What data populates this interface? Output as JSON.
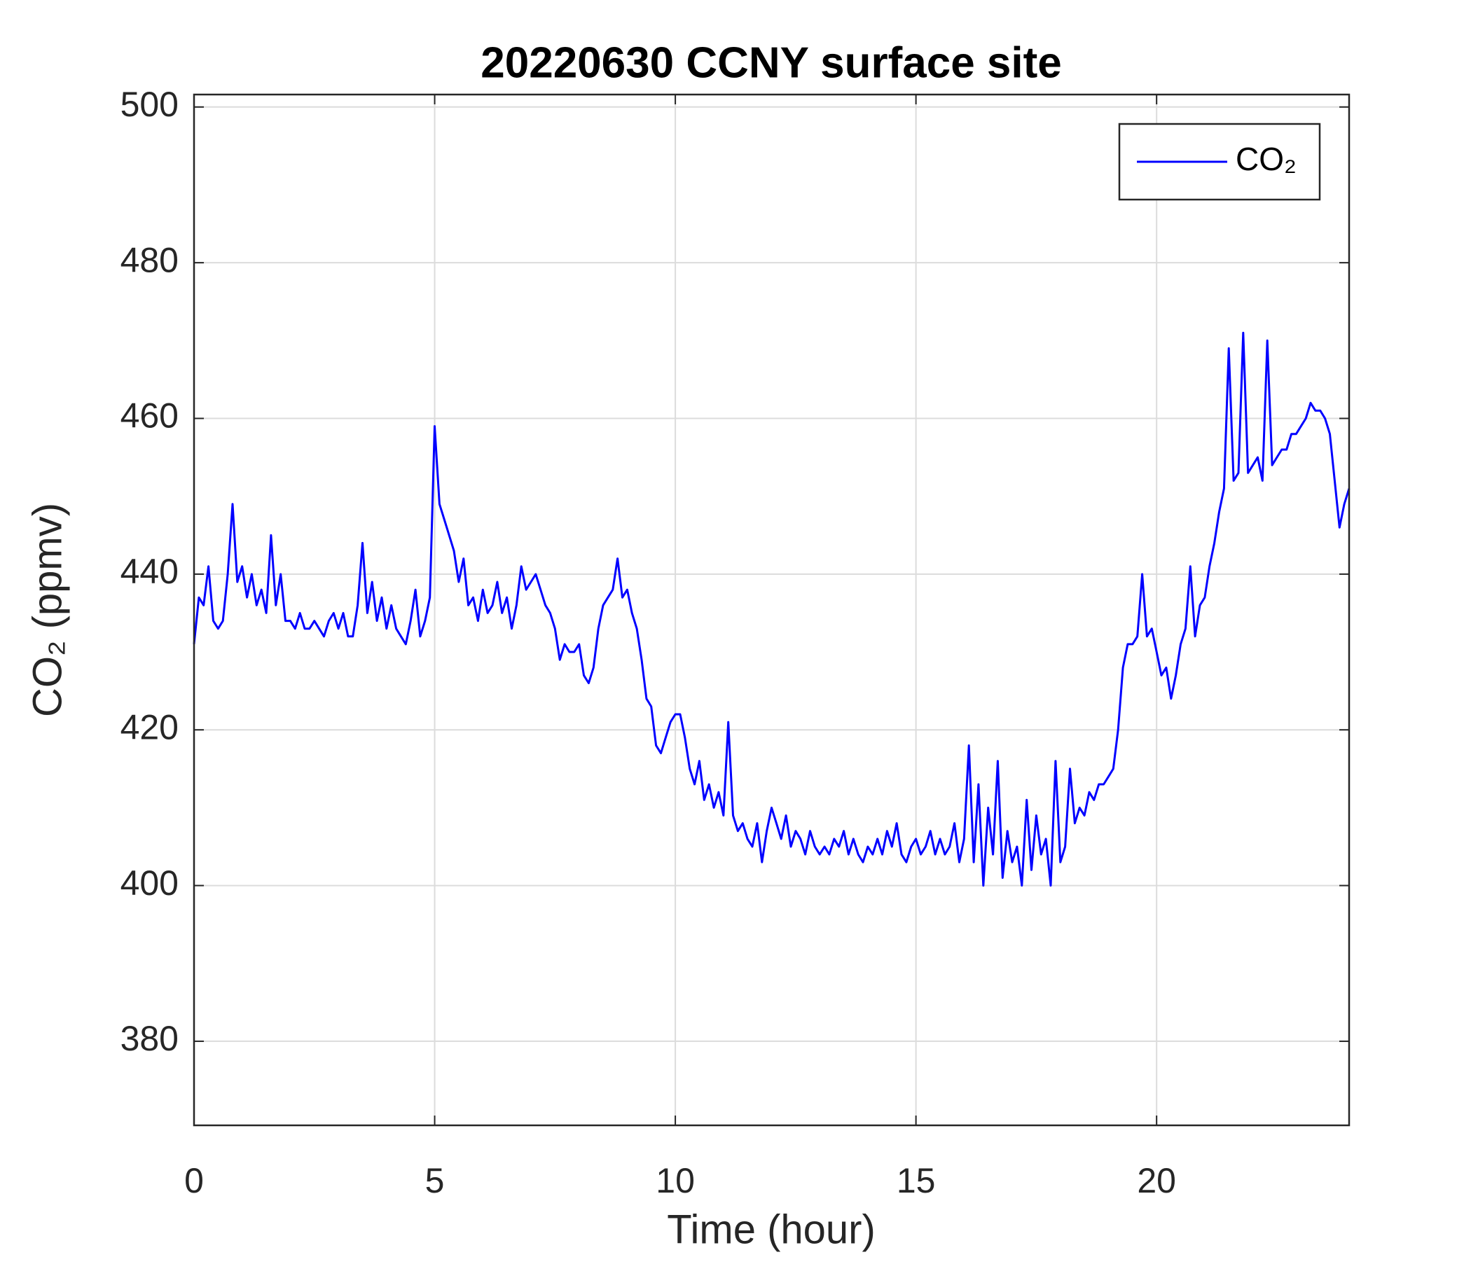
{
  "chart_data": {
    "type": "line",
    "title": "20220630 CCNY surface site",
    "xlabel": "Time (hour)",
    "ylabel": "CO₂ (ppmv)",
    "xlim": [
      0,
      24
    ],
    "ylim": [
      369.2,
      501.6
    ],
    "xticks": [
      0,
      5,
      10,
      15,
      20
    ],
    "yticks": [
      380,
      400,
      420,
      440,
      460,
      480,
      500
    ],
    "grid": true,
    "legend": "upper right",
    "x": [
      0,
      0.1,
      0.2,
      0.3,
      0.4,
      0.5,
      0.6,
      0.7,
      0.8,
      0.9,
      1,
      1.1,
      1.2,
      1.3,
      1.4,
      1.5,
      1.6,
      1.7,
      1.8,
      1.9,
      2,
      2.1,
      2.2,
      2.3,
      2.4,
      2.5,
      2.6,
      2.7,
      2.8,
      2.9,
      3,
      3.1,
      3.2,
      3.3,
      3.4,
      3.5,
      3.6,
      3.7,
      3.8,
      3.9,
      4,
      4.1,
      4.2,
      4.3,
      4.4,
      4.5,
      4.6,
      4.7,
      4.8,
      4.9,
      5,
      5.1,
      5.2,
      5.3,
      5.4,
      5.5,
      5.6,
      5.7,
      5.8,
      5.9,
      6,
      6.1,
      6.2,
      6.3,
      6.4,
      6.5,
      6.6,
      6.7,
      6.8,
      6.9,
      7,
      7.1,
      7.2,
      7.3,
      7.4,
      7.5,
      7.6,
      7.7,
      7.8,
      7.9,
      8,
      8.1,
      8.2,
      8.3,
      8.4,
      8.5,
      8.6,
      8.7,
      8.8,
      8.9,
      9,
      9.1,
      9.2,
      9.3,
      9.4,
      9.5,
      9.6,
      9.7,
      9.8,
      9.9,
      10,
      10.1,
      10.2,
      10.3,
      10.4,
      10.5,
      10.6,
      10.7,
      10.8,
      10.9,
      11,
      11.1,
      11.2,
      11.3,
      11.4,
      11.5,
      11.6,
      11.7,
      11.8,
      11.9,
      12,
      12.1,
      12.2,
      12.3,
      12.4,
      12.5,
      12.6,
      12.7,
      12.8,
      12.9,
      13,
      13.1,
      13.2,
      13.3,
      13.4,
      13.5,
      13.6,
      13.7,
      13.8,
      13.9,
      14,
      14.1,
      14.2,
      14.3,
      14.4,
      14.5,
      14.6,
      14.7,
      14.8,
      14.9,
      15,
      15.1,
      15.2,
      15.3,
      15.4,
      15.5,
      15.6,
      15.7,
      15.8,
      15.9,
      16,
      16.1,
      16.2,
      16.3,
      16.4,
      16.5,
      16.6,
      16.7,
      16.8,
      16.9,
      17,
      17.1,
      17.2,
      17.3,
      17.4,
      17.5,
      17.6,
      17.7,
      17.8,
      17.9,
      18,
      18.1,
      18.2,
      18.3,
      18.4,
      18.5,
      18.6,
      18.7,
      18.8,
      18.9,
      19,
      19.1,
      19.2,
      19.3,
      19.4,
      19.5,
      19.6,
      19.7,
      19.8,
      19.9,
      20,
      20.1,
      20.2,
      20.3,
      20.4,
      20.5,
      20.6,
      20.7,
      20.8,
      20.9,
      21,
      21.1,
      21.2,
      21.3,
      21.4,
      21.5,
      21.6,
      21.7,
      21.8,
      21.9,
      22,
      22.1,
      22.2,
      22.3,
      22.4,
      22.5,
      22.6,
      22.7,
      22.8,
      22.9,
      23,
      23.1,
      23.2,
      23.3,
      23.4,
      23.5,
      23.6,
      23.7,
      23.8,
      23.9,
      24
    ],
    "series": [
      {
        "name": "CO₂",
        "color": "#0000ff",
        "values": [
          431,
          437,
          436,
          441,
          434,
          433,
          434,
          440,
          449,
          439,
          441,
          437,
          440,
          436,
          438,
          435,
          445,
          436,
          440,
          434,
          434,
          433,
          435,
          433,
          433,
          434,
          433,
          432,
          434,
          435,
          433,
          435,
          432,
          432,
          436,
          444,
          435,
          439,
          434,
          437,
          433,
          436,
          433,
          432,
          431,
          434,
          438,
          432,
          434,
          437,
          459,
          449,
          447,
          445,
          443,
          439,
          442,
          436,
          437,
          434,
          438,
          435,
          436,
          439,
          435,
          437,
          433,
          436,
          441,
          438,
          439,
          440,
          438,
          436,
          435,
          433,
          429,
          431,
          430,
          430,
          431,
          427,
          426,
          428,
          433,
          436,
          437,
          438,
          442,
          437,
          438,
          435,
          433,
          429,
          424,
          423,
          418,
          417,
          419,
          421,
          422,
          422,
          419,
          415,
          413,
          416,
          411,
          413,
          410,
          412,
          409,
          421,
          409,
          407,
          408,
          406,
          405,
          408,
          403,
          407,
          410,
          408,
          406,
          409,
          405,
          407,
          406,
          404,
          407,
          405,
          404,
          405,
          404,
          406,
          405,
          407,
          404,
          406,
          404,
          403,
          405,
          404,
          406,
          404,
          407,
          405,
          408,
          404,
          403,
          405,
          406,
          404,
          405,
          407,
          404,
          406,
          404,
          405,
          408,
          403,
          406,
          418,
          403,
          413,
          400,
          410,
          404,
          416,
          401,
          407,
          403,
          405,
          400,
          411,
          402,
          409,
          404,
          406,
          400,
          416,
          403,
          405,
          415,
          408,
          410,
          409,
          412,
          411,
          413,
          413,
          414,
          415,
          420,
          428,
          431,
          431,
          432,
          440,
          432,
          433,
          430,
          427,
          428,
          424,
          427,
          431,
          433,
          441,
          432,
          436,
          437,
          441,
          444,
          448,
          451,
          469,
          452,
          453,
          471,
          453,
          454,
          455,
          452,
          470,
          454,
          455,
          456,
          456,
          458,
          458,
          459,
          460,
          462,
          461,
          461,
          460,
          458,
          452,
          446,
          449,
          451
        ]
      }
    ]
  }
}
